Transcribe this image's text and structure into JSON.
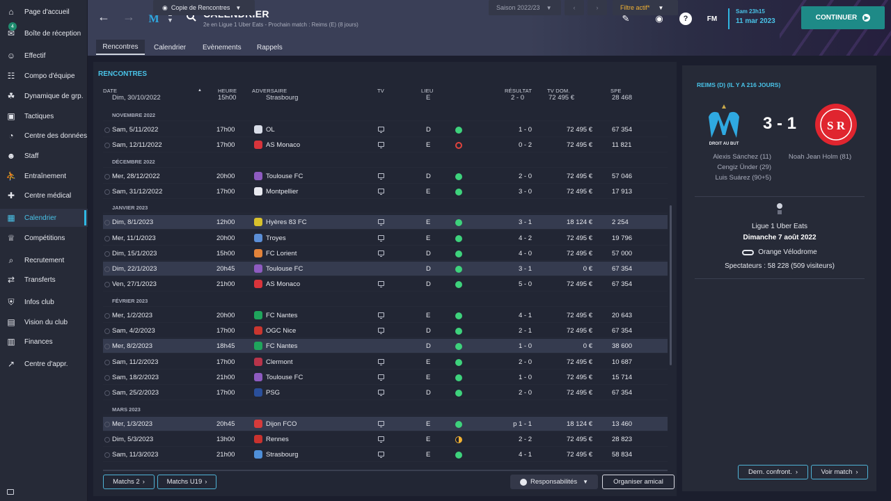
{
  "sidebar": {
    "items": [
      {
        "label": "Page d'accueil",
        "icon": "home-icon"
      },
      {
        "label": "Boîte de réception",
        "icon": "inbox-icon",
        "badge": "4"
      },
      {
        "label": "Effectif",
        "icon": "squad-icon"
      },
      {
        "label": "Compo d'équipe",
        "icon": "clipboard-icon"
      },
      {
        "label": "Dynamique de grp.",
        "icon": "group-dynamics-icon"
      },
      {
        "label": "Tactiques",
        "icon": "tactics-icon"
      },
      {
        "label": "Centre des données",
        "icon": "data-hub-icon"
      },
      {
        "label": "Staff",
        "icon": "staff-icon"
      },
      {
        "label": "Entraînement",
        "icon": "training-icon"
      },
      {
        "label": "Centre médical",
        "icon": "medical-icon"
      },
      {
        "label": "Calendrier",
        "icon": "calendar-icon"
      },
      {
        "label": "Compétitions",
        "icon": "trophy-icon"
      },
      {
        "label": "Recrutement",
        "icon": "scouting-icon"
      },
      {
        "label": "Transferts",
        "icon": "transfers-icon"
      },
      {
        "label": "Infos club",
        "icon": "club-shield-icon"
      },
      {
        "label": "Vision du club",
        "icon": "briefcase-icon"
      },
      {
        "label": "Finances",
        "icon": "finances-icon"
      },
      {
        "label": "Centre d'appr.",
        "icon": "development-icon"
      }
    ]
  },
  "header": {
    "title": "CALENDRIER",
    "subtitle": "2e en Ligue 1 Uber Eats - Prochain match : Reims (E) (8 jours)",
    "tabs": [
      "Rencontres",
      "Calendrier",
      "Evènements",
      "Rappels"
    ],
    "logo_text": "FM",
    "date_time": "Sam 23h15",
    "date": "11 mar 2023",
    "continue_label": "CONTINUER"
  },
  "fixtures": {
    "section_title": "RENCONTRES",
    "view_dropdown": "Copie de Rencontres",
    "season": "Saison 2022/23",
    "filter": "Filtre actif*",
    "columns": {
      "date": "DATE",
      "time": "HEURE",
      "opponent": "ADVERSAIRE",
      "tv": "TV",
      "venue": "LIEU",
      "result": "RÉSULTAT",
      "tv_rev": "TV DOM.",
      "spe": "SPE"
    },
    "top_partial": {
      "date": "Dim, 30/10/2022",
      "time": "15h00",
      "opponent": "Strasbourg",
      "venue": "E",
      "result": "2 - 0",
      "tv_rev": "72 495 €",
      "spe": "28 468"
    },
    "groups": [
      {
        "month": "NOVEMBRE 2022",
        "rows": [
          {
            "date": "Sam, 5/11/2022",
            "time": "17h00",
            "opponent": "OL",
            "tv": true,
            "venue": "D",
            "result": "1 - 0",
            "outcome": "win",
            "tv_rev": "72 495 €",
            "spe": "67 354",
            "crest": "#d9dde8",
            "hl": false
          },
          {
            "date": "Sam, 12/11/2022",
            "time": "17h00",
            "opponent": "AS Monaco",
            "tv": true,
            "venue": "E",
            "result": "0 - 2",
            "outcome": "loss",
            "tv_rev": "72 495 €",
            "spe": "11 821",
            "crest": "#d8343b",
            "hl": false
          }
        ]
      },
      {
        "month": "DÉCEMBRE 2022",
        "rows": [
          {
            "date": "Mer, 28/12/2022",
            "time": "20h00",
            "opponent": "Toulouse FC",
            "tv": true,
            "venue": "D",
            "result": "2 - 0",
            "outcome": "win",
            "tv_rev": "72 495 €",
            "spe": "57 046",
            "crest": "#8e5bc0",
            "hl": false
          },
          {
            "date": "Sam, 31/12/2022",
            "time": "17h00",
            "opponent": "Montpellier",
            "tv": true,
            "venue": "E",
            "result": "3 - 0",
            "outcome": "win",
            "tv_rev": "72 495 €",
            "spe": "17 913",
            "crest": "#e8e9ef",
            "hl": false
          }
        ]
      },
      {
        "month": "JANVIER 2023",
        "rows": [
          {
            "date": "Dim, 8/1/2023",
            "time": "12h00",
            "opponent": "Hyères 83 FC",
            "tv": true,
            "venue": "E",
            "result": "3 - 1",
            "outcome": "win",
            "tv_rev": "18 124 €",
            "spe": "2 254",
            "crest": "#d8c12c",
            "hl": true
          },
          {
            "date": "Mer, 11/1/2023",
            "time": "20h00",
            "opponent": "Troyes",
            "tv": true,
            "venue": "E",
            "result": "4 - 2",
            "outcome": "win",
            "tv_rev": "72 495 €",
            "spe": "19 796",
            "crest": "#5b8ed6",
            "hl": false
          },
          {
            "date": "Dim, 15/1/2023",
            "time": "15h00",
            "opponent": "FC Lorient",
            "tv": true,
            "venue": "D",
            "result": "4 - 0",
            "outcome": "win",
            "tv_rev": "72 495 €",
            "spe": "57 000",
            "crest": "#e2833a",
            "hl": false
          },
          {
            "date": "Dim, 22/1/2023",
            "time": "20h45",
            "opponent": "Toulouse FC",
            "tv": false,
            "venue": "D",
            "result": "3 - 1",
            "outcome": "win",
            "tv_rev": "0 €",
            "spe": "67 354",
            "crest": "#8e5bc0",
            "hl": true
          },
          {
            "date": "Ven, 27/1/2023",
            "time": "21h00",
            "opponent": "AS Monaco",
            "tv": true,
            "venue": "D",
            "result": "5 - 0",
            "outcome": "win",
            "tv_rev": "72 495 €",
            "spe": "67 354",
            "crest": "#d8343b",
            "hl": false
          }
        ]
      },
      {
        "month": "FÉVRIER 2023",
        "rows": [
          {
            "date": "Mer, 1/2/2023",
            "time": "20h00",
            "opponent": "FC Nantes",
            "tv": true,
            "venue": "E",
            "result": "4 - 1",
            "outcome": "win",
            "tv_rev": "72 495 €",
            "spe": "20 643",
            "crest": "#1fa55c",
            "hl": false
          },
          {
            "date": "Sam, 4/2/2023",
            "time": "17h00",
            "opponent": "OGC Nice",
            "tv": true,
            "venue": "D",
            "result": "2 - 1",
            "outcome": "win",
            "tv_rev": "72 495 €",
            "spe": "67 354",
            "crest": "#c9362f",
            "hl": false
          },
          {
            "date": "Mer, 8/2/2023",
            "time": "18h45",
            "opponent": "FC Nantes",
            "tv": false,
            "venue": "D",
            "result": "1 - 0",
            "outcome": "win",
            "tv_rev": "0 €",
            "spe": "38 600",
            "crest": "#1fa55c",
            "hl": true
          },
          {
            "date": "Sam, 11/2/2023",
            "time": "17h00",
            "opponent": "Clermont",
            "tv": true,
            "venue": "E",
            "result": "2 - 0",
            "outcome": "win",
            "tv_rev": "72 495 €",
            "spe": "10 687",
            "crest": "#b8344a",
            "hl": false
          },
          {
            "date": "Sam, 18/2/2023",
            "time": "21h00",
            "opponent": "Toulouse FC",
            "tv": true,
            "venue": "E",
            "result": "1 - 0",
            "outcome": "win",
            "tv_rev": "72 495 €",
            "spe": "15 714",
            "crest": "#8e5bc0",
            "hl": false
          },
          {
            "date": "Sam, 25/2/2023",
            "time": "17h00",
            "opponent": "PSG",
            "tv": true,
            "venue": "D",
            "result": "2 - 0",
            "outcome": "win",
            "tv_rev": "72 495 €",
            "spe": "67 354",
            "crest": "#2a4f9b",
            "hl": false
          }
        ]
      },
      {
        "month": "MARS 2023",
        "rows": [
          {
            "date": "Mer, 1/3/2023",
            "time": "20h45",
            "opponent": "Dijon FCO",
            "tv": true,
            "venue": "E",
            "result": "p 1 - 1",
            "outcome": "win",
            "tv_rev": "18 124 €",
            "spe": "13 460",
            "crest": "#d63b3b",
            "hl": true
          },
          {
            "date": "Dim, 5/3/2023",
            "time": "13h00",
            "opponent": "Rennes",
            "tv": true,
            "venue": "E",
            "result": "2 - 2",
            "outcome": "draw",
            "tv_rev": "72 495 €",
            "spe": "28 823",
            "crest": "#c9322e",
            "hl": false
          },
          {
            "date": "Sam, 11/3/2023",
            "time": "21h00",
            "opponent": "Strasbourg",
            "tv": true,
            "venue": "E",
            "result": "4 - 1",
            "outcome": "win",
            "tv_rev": "72 495 €",
            "spe": "58 834",
            "crest": "#4f8fd8",
            "hl": false
          }
        ]
      }
    ],
    "footer": {
      "matches2": "Matchs 2",
      "matchesU19": "Matchs U19",
      "responsibilities": "Responsabilités",
      "friendly": "Organiser amical"
    }
  },
  "match_panel": {
    "title": "REIMS (D) (IL Y A 216 JOURS)",
    "score": "3 - 1",
    "home_motto": "DROIT AU BUT",
    "away_crest_text": "S R",
    "home_scorers": [
      "Alexis Sánchez (11)",
      "Cengiz Ünder (29)",
      "Luis Suárez (90+5)"
    ],
    "away_scorers": [
      "Noah Jean Holm (81)"
    ],
    "competition": "Ligue 1 Uber Eats",
    "date": "Dimanche 7 août 2022",
    "stadium": "Orange Vélodrome",
    "spectators": "Spectateurs : 58 228 (509 visiteurs)",
    "btn_head_to_head": "Dern. confront.",
    "btn_view_match": "Voir match"
  },
  "colors": {
    "accent": "#2fb7e3",
    "continue": "#1e8a87",
    "win": "#3ed27c",
    "loss": "#e0433d",
    "draw": "#f2b233",
    "om_blue": "#2fa9e1",
    "reims_red": "#e0252f"
  }
}
